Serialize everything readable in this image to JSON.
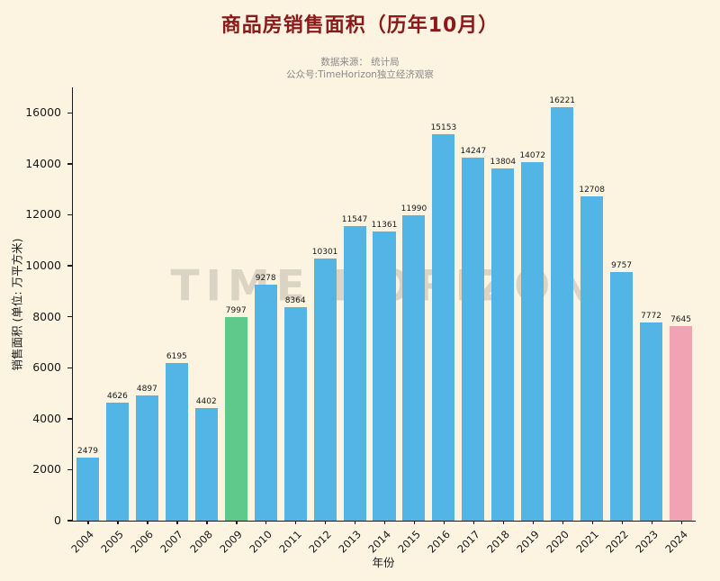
{
  "page": {
    "title": "商品房销售面积（历年10月）",
    "subtitle1": "数据来源： 统计局",
    "subtitle2": "公众号:TimeHorizon独立经济观察",
    "watermark": "TIME HORIZON"
  },
  "colors": {
    "background": "#fcf3e1",
    "title": "#8b1a1a",
    "subtitle": "#8a8a8a",
    "bar_default": "#53b4e6",
    "axis": "#1a1a1a",
    "watermark": "#a8a396"
  },
  "chart_data": {
    "type": "bar",
    "title": "商品房销售面积（历年10月）",
    "xlabel": "年份",
    "ylabel": "销售面积 (单位: 万平方米)",
    "categories": [
      "2004",
      "2005",
      "2006",
      "2007",
      "2008",
      "2009",
      "2010",
      "2011",
      "2012",
      "2013",
      "2014",
      "2015",
      "2016",
      "2017",
      "2018",
      "2019",
      "2020",
      "2021",
      "2022",
      "2023",
      "2024"
    ],
    "values": [
      2479,
      4626,
      4897,
      6195,
      4402,
      7997,
      9278,
      8364,
      10301,
      11547,
      11361,
      11990,
      15153,
      14247,
      13804,
      14072,
      16221,
      12708,
      9757,
      7772,
      7645
    ],
    "highlight": {
      "2009": "#5fc98b",
      "2024": "#f2a3b3"
    },
    "ylim": [
      0,
      17000
    ],
    "yticks": [
      0,
      2000,
      4000,
      6000,
      8000,
      10000,
      12000,
      14000,
      16000
    ],
    "grid": false,
    "legend_position": "none"
  }
}
